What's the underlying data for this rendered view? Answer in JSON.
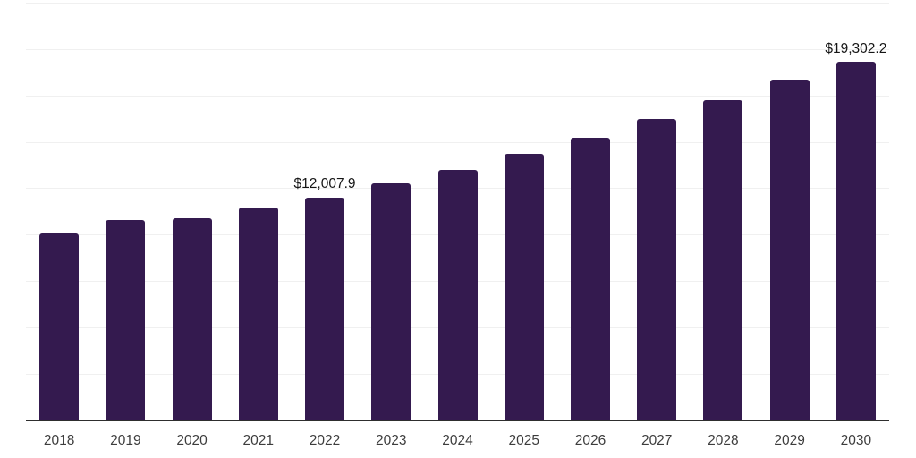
{
  "chart_data": {
    "type": "bar",
    "title": "",
    "xlabel": "",
    "ylabel": "",
    "categories": [
      "2018",
      "2019",
      "2020",
      "2021",
      "2022",
      "2023",
      "2024",
      "2025",
      "2026",
      "2027",
      "2028",
      "2029",
      "2030"
    ],
    "values": [
      10040,
      10765,
      10875,
      11440,
      12007.9,
      12770,
      13490,
      14360,
      15220,
      16215,
      17230,
      18340,
      19302.2
    ],
    "value_labels": [
      {
        "category": "2022",
        "text": "$12,007.9"
      },
      {
        "category": "2030",
        "text": "$19,302.2"
      }
    ],
    "ylim": [
      0,
      22500
    ],
    "gridline_interval": 2500,
    "grid": "horizontal-only",
    "y_tick_labels_visible": false,
    "legend": "none",
    "colors": {
      "bar": "#341a4f",
      "gridline": "#f0f0f0",
      "axis_line": "#2e2e2e",
      "tick_label": "#3d3d3d",
      "value_label": "#151515",
      "background": "#ffffff"
    }
  }
}
